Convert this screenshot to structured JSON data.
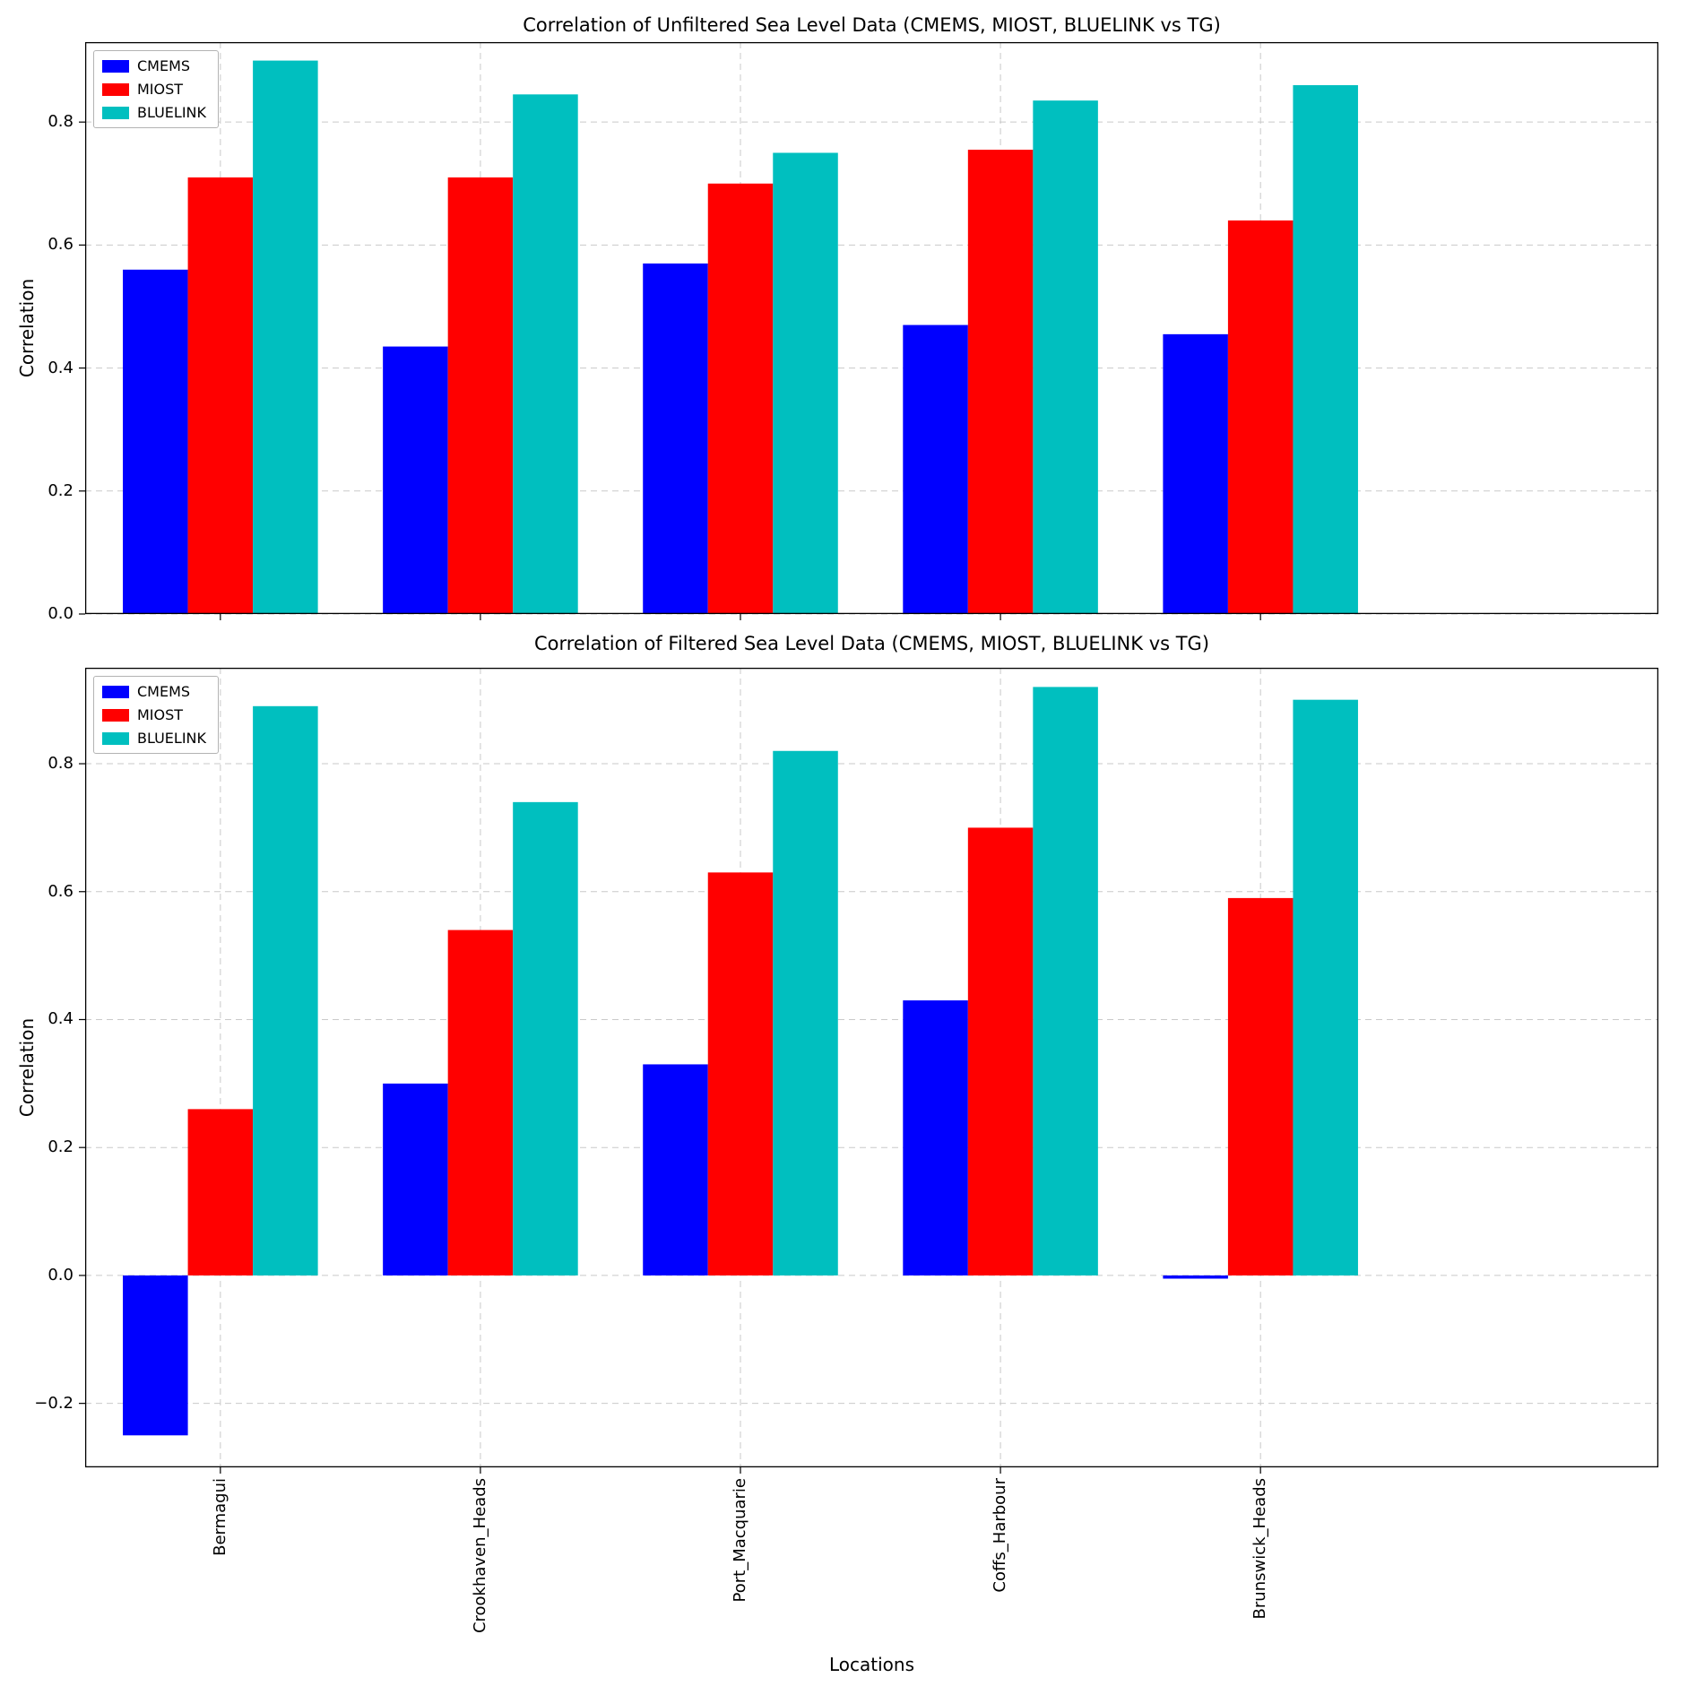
{
  "figure": {
    "xlabel": "Locations",
    "ylabel": "Correlation"
  },
  "chart_data": [
    {
      "type": "bar",
      "title": "Correlation of Unfiltered Sea Level Data (CMEMS, MIOST, BLUELINK vs TG)",
      "ylabel": "Correlation",
      "categories": [
        "Bermagui",
        "Crookhaven_Heads",
        "Port_Macquarie",
        "Coffs_Harbour",
        "Brunswick_Heads"
      ],
      "series": [
        {
          "name": "CMEMS",
          "color": "#0000ff",
          "values": [
            0.56,
            0.435,
            0.57,
            0.47,
            0.455
          ]
        },
        {
          "name": "MIOST",
          "color": "#ff0000",
          "values": [
            0.71,
            0.71,
            0.7,
            0.755,
            0.64
          ]
        },
        {
          "name": "BLUELINK",
          "color": "#00bfbf",
          "values": [
            0.9,
            0.845,
            0.75,
            0.835,
            0.86
          ]
        }
      ],
      "ylim": [
        0,
        0.93
      ],
      "yticks": [
        0.0,
        0.2,
        0.4,
        0.6,
        0.8
      ],
      "grid": true,
      "grid_style": "dashed",
      "legend_position": "upper left",
      "x_tick_labels_visible": false
    },
    {
      "type": "bar",
      "title": "Correlation of Filtered Sea Level Data (CMEMS, MIOST, BLUELINK vs TG)",
      "ylabel": "Correlation",
      "xlabel": "Locations",
      "categories": [
        "Bermagui",
        "Crookhaven_Heads",
        "Port_Macquarie",
        "Coffs_Harbour",
        "Brunswick_Heads"
      ],
      "series": [
        {
          "name": "CMEMS",
          "color": "#0000ff",
          "values": [
            -0.25,
            0.3,
            0.33,
            0.43,
            -0.005
          ]
        },
        {
          "name": "MIOST",
          "color": "#ff0000",
          "values": [
            0.26,
            0.54,
            0.63,
            0.7,
            0.59
          ]
        },
        {
          "name": "BLUELINK",
          "color": "#00bfbf",
          "values": [
            0.89,
            0.74,
            0.82,
            0.92,
            0.9
          ]
        }
      ],
      "ylim": [
        -0.3,
        0.95
      ],
      "yticks": [
        -0.2,
        0.0,
        0.2,
        0.4,
        0.6,
        0.8
      ],
      "grid": true,
      "grid_style": "dashed",
      "legend_position": "upper left",
      "x_tick_labels_visible": true
    }
  ]
}
